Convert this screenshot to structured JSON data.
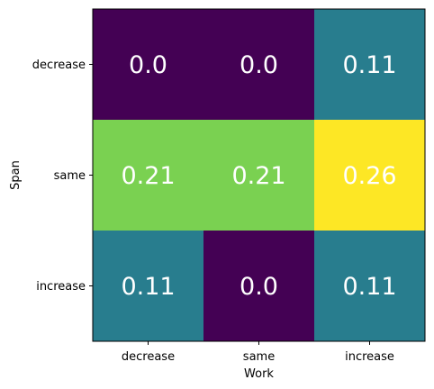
{
  "chart_data": {
    "type": "heatmap",
    "xlabel": "Work",
    "ylabel": "Span",
    "x_categories": [
      "decrease",
      "same",
      "increase"
    ],
    "y_categories": [
      "decrease",
      "same",
      "increase"
    ],
    "values": [
      [
        0.0,
        0.0,
        0.11
      ],
      [
        0.21,
        0.21,
        0.26
      ],
      [
        0.11,
        0.0,
        0.11
      ]
    ],
    "value_labels": [
      [
        "0.0",
        "0.0",
        "0.11"
      ],
      [
        "0.21",
        "0.21",
        "0.26"
      ],
      [
        "0.11",
        "0.0",
        "0.11"
      ]
    ],
    "colormap": "viridis",
    "cell_colors": [
      [
        "#440154",
        "#440154",
        "#287d8e"
      ],
      [
        "#7ad151",
        "#7ad151",
        "#fde725"
      ],
      [
        "#287d8e",
        "#440154",
        "#287d8e"
      ]
    ],
    "label_color": "#ffffff",
    "grid": false
  }
}
